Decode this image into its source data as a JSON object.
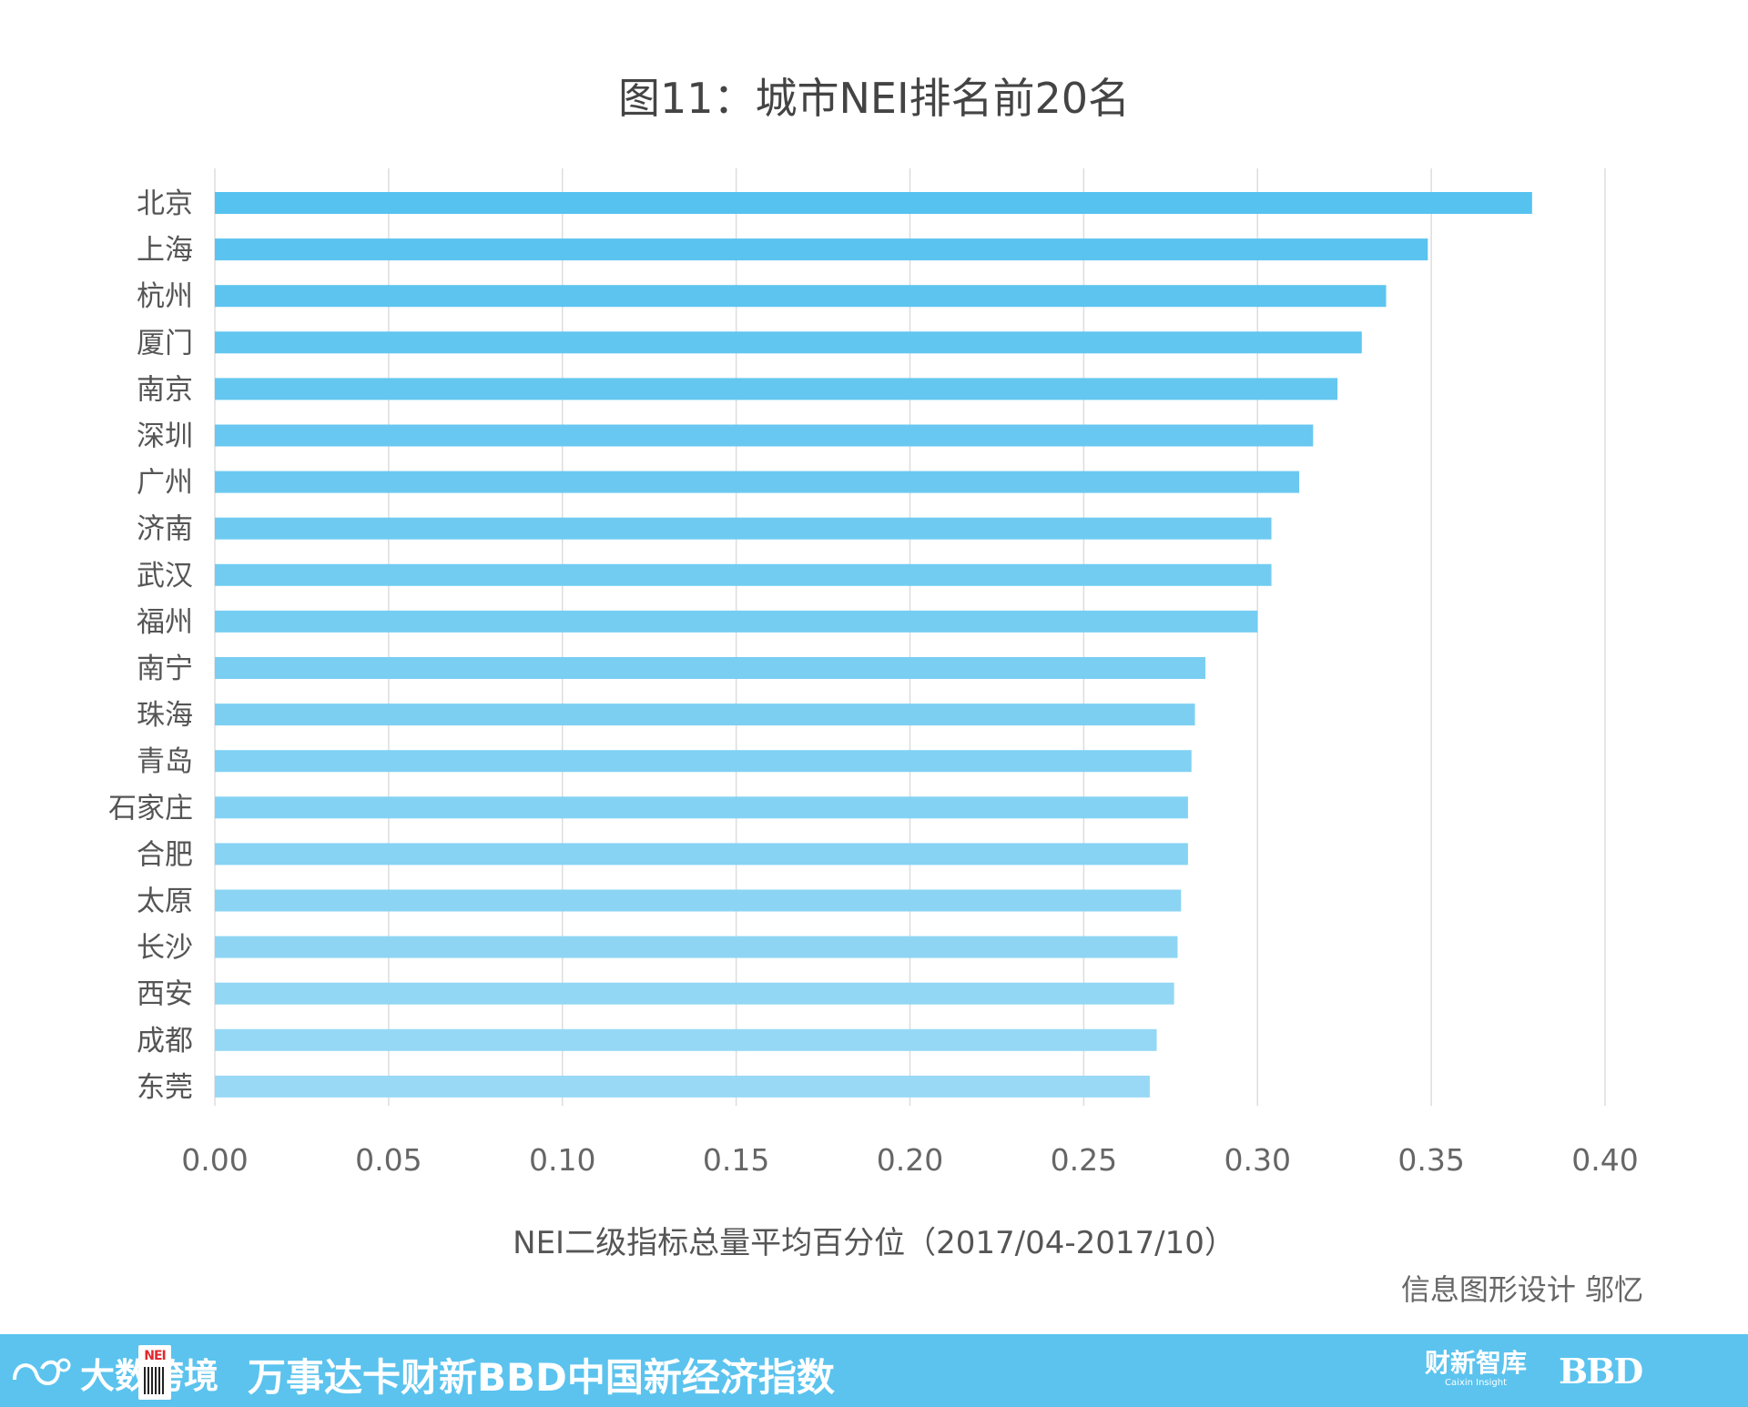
{
  "chart_data": {
    "type": "bar",
    "orientation": "horizontal",
    "title": "图11：城市NEI排名前20名",
    "xlabel": "NEI二级指标总量平均百分位（2017/04-2017/10）",
    "ylabel": "",
    "xlim": [
      0,
      0.4
    ],
    "xticks": [
      "0.00",
      "0.05",
      "0.10",
      "0.15",
      "0.20",
      "0.25",
      "0.30",
      "0.35",
      "0.40"
    ],
    "grid": "vertical",
    "categories": [
      "北京",
      "上海",
      "杭州",
      "厦门",
      "南京",
      "深圳",
      "广州",
      "济南",
      "武汉",
      "福州",
      "南宁",
      "珠海",
      "青岛",
      "石家庄",
      "合肥",
      "太原",
      "长沙",
      "西安",
      "成都",
      "东莞"
    ],
    "values": [
      0.379,
      0.349,
      0.337,
      0.33,
      0.323,
      0.316,
      0.312,
      0.304,
      0.304,
      0.3,
      0.285,
      0.282,
      0.281,
      0.28,
      0.28,
      0.278,
      0.277,
      0.276,
      0.271,
      0.269
    ],
    "bar_color_start": "#56c2ef",
    "bar_color_end": "#99d9f5"
  },
  "credit": "信息图形设计 邬忆",
  "footer": {
    "brand": "大数跨境",
    "badge": "NEI",
    "title": "万事达卡财新BBD中国新经济指数",
    "logo_caixin_cn": "财新智库",
    "logo_caixin_en": "Caixin Insight",
    "logo_bbd": "BBD",
    "background": "#5bc3ee"
  }
}
